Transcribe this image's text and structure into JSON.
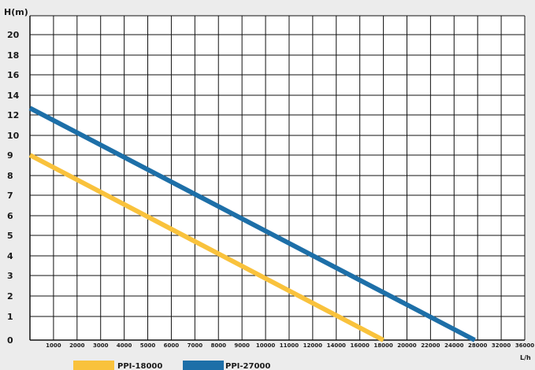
{
  "chart_data": {
    "type": "line",
    "ylabel": "H(m)",
    "xlabel": "L/h",
    "x_ticks": [
      0,
      1000,
      2000,
      3000,
      4000,
      5000,
      6000,
      7000,
      8000,
      9000,
      10000,
      11000,
      12000,
      14000,
      16000,
      18000,
      20000,
      22000,
      24000,
      28000,
      32000,
      36000
    ],
    "x_tick_labels": [
      "",
      "1000",
      "2000",
      "3000",
      "4000",
      "5000",
      "6000",
      "7000",
      "8000",
      "9000",
      "10000",
      "11000",
      "12000",
      "14000",
      "16000",
      "18000",
      "20000",
      "22000",
      "24000",
      "28000",
      "32000",
      "36000"
    ],
    "y_ticks": [
      0,
      1,
      2,
      3,
      4,
      5,
      6,
      7,
      8,
      9,
      10,
      12,
      14,
      16,
      18,
      20
    ],
    "y_tick_labels": [
      "0",
      "1",
      "2",
      "3",
      "4",
      "5",
      "6",
      "7",
      "8",
      "9",
      "10",
      "12",
      "14",
      "16",
      "18",
      "20"
    ],
    "grid": true,
    "legend_position": "bottom",
    "series": [
      {
        "name": "PPI-18000",
        "color": "#f9c23c",
        "points": [
          [
            0,
            9
          ],
          [
            18000,
            0
          ]
        ]
      },
      {
        "name": "PPI-27000",
        "color": "#1d6fa8",
        "points": [
          [
            0,
            12.7
          ],
          [
            27500,
            0
          ]
        ]
      }
    ]
  }
}
